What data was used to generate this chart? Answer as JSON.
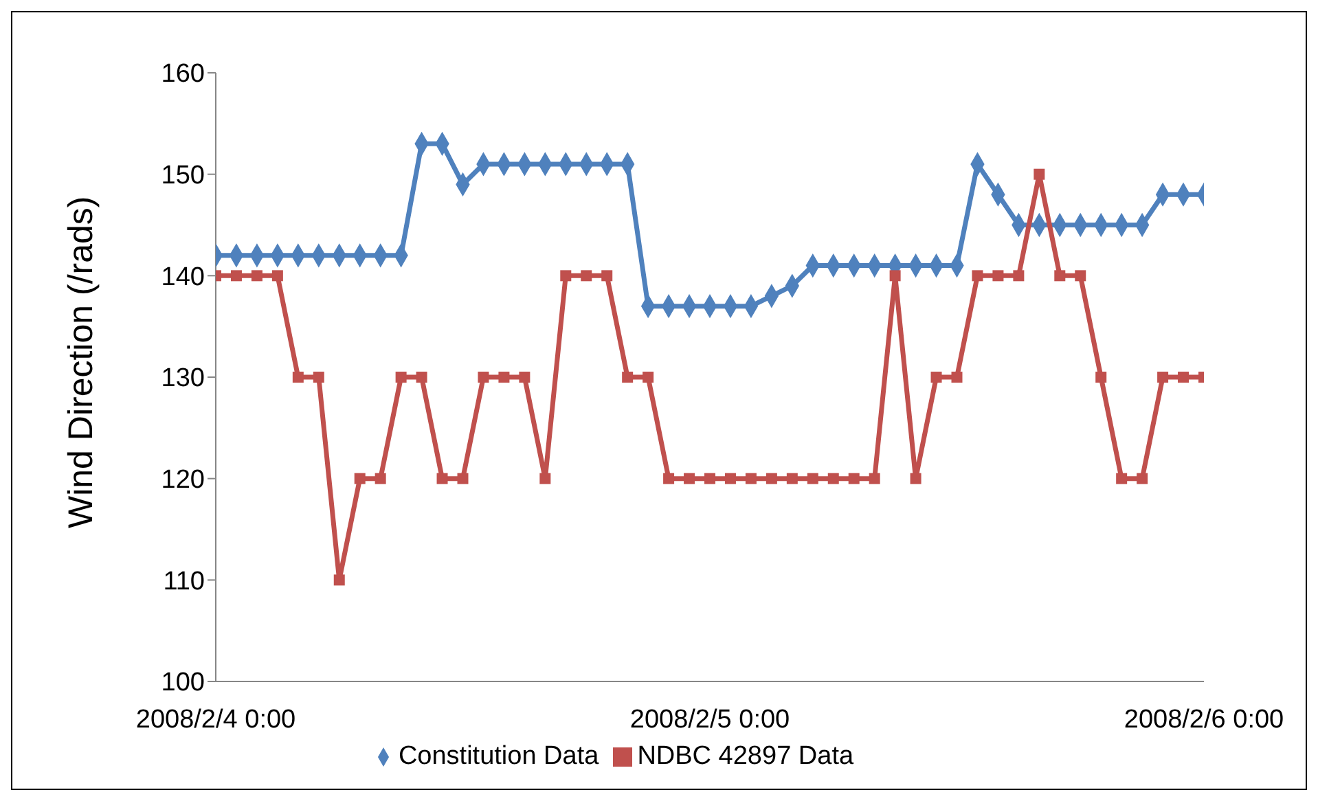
{
  "chart_data": {
    "type": "line",
    "ylabel": "Wind Direction (/rads)",
    "categories": [
      "2008/2/4 0:00",
      null,
      null,
      null,
      null,
      null,
      null,
      null,
      null,
      null,
      null,
      null,
      null,
      null,
      null,
      null,
      null,
      null,
      null,
      null,
      null,
      null,
      null,
      null,
      "2008/2/5 0:00",
      null,
      null,
      null,
      null,
      null,
      null,
      null,
      null,
      null,
      null,
      null,
      null,
      null,
      null,
      null,
      null,
      null,
      null,
      null,
      null,
      null,
      null,
      null,
      "2008/2/6 0:00"
    ],
    "series": [
      {
        "name": "Constitution Data",
        "color": "#4f81bd",
        "marker": "diamond",
        "values": [
          142,
          142,
          142,
          142,
          142,
          142,
          142,
          142,
          142,
          142,
          153,
          153,
          149,
          151,
          151,
          151,
          151,
          151,
          151,
          151,
          151,
          137,
          137,
          137,
          137,
          137,
          137,
          138,
          139,
          141,
          141,
          141,
          141,
          141,
          141,
          141,
          141,
          151,
          148,
          145,
          145,
          145,
          145,
          145,
          145,
          145,
          148,
          148,
          148
        ]
      },
      {
        "name": "NDBC 42897 Data",
        "color": "#c0504d",
        "marker": "square",
        "values": [
          140,
          140,
          140,
          140,
          130,
          130,
          110,
          120,
          120,
          130,
          130,
          120,
          120,
          130,
          130,
          130,
          120,
          140,
          140,
          140,
          130,
          130,
          120,
          120,
          120,
          120,
          120,
          120,
          120,
          120,
          120,
          120,
          120,
          140,
          120,
          130,
          130,
          140,
          140,
          140,
          150,
          140,
          140,
          130,
          120,
          120,
          130,
          130,
          130
        ]
      }
    ],
    "ylim": [
      100,
      160
    ],
    "yticks": [
      100,
      110,
      120,
      130,
      140,
      150,
      160
    ],
    "legend": "bottom",
    "line_style": "solid"
  }
}
